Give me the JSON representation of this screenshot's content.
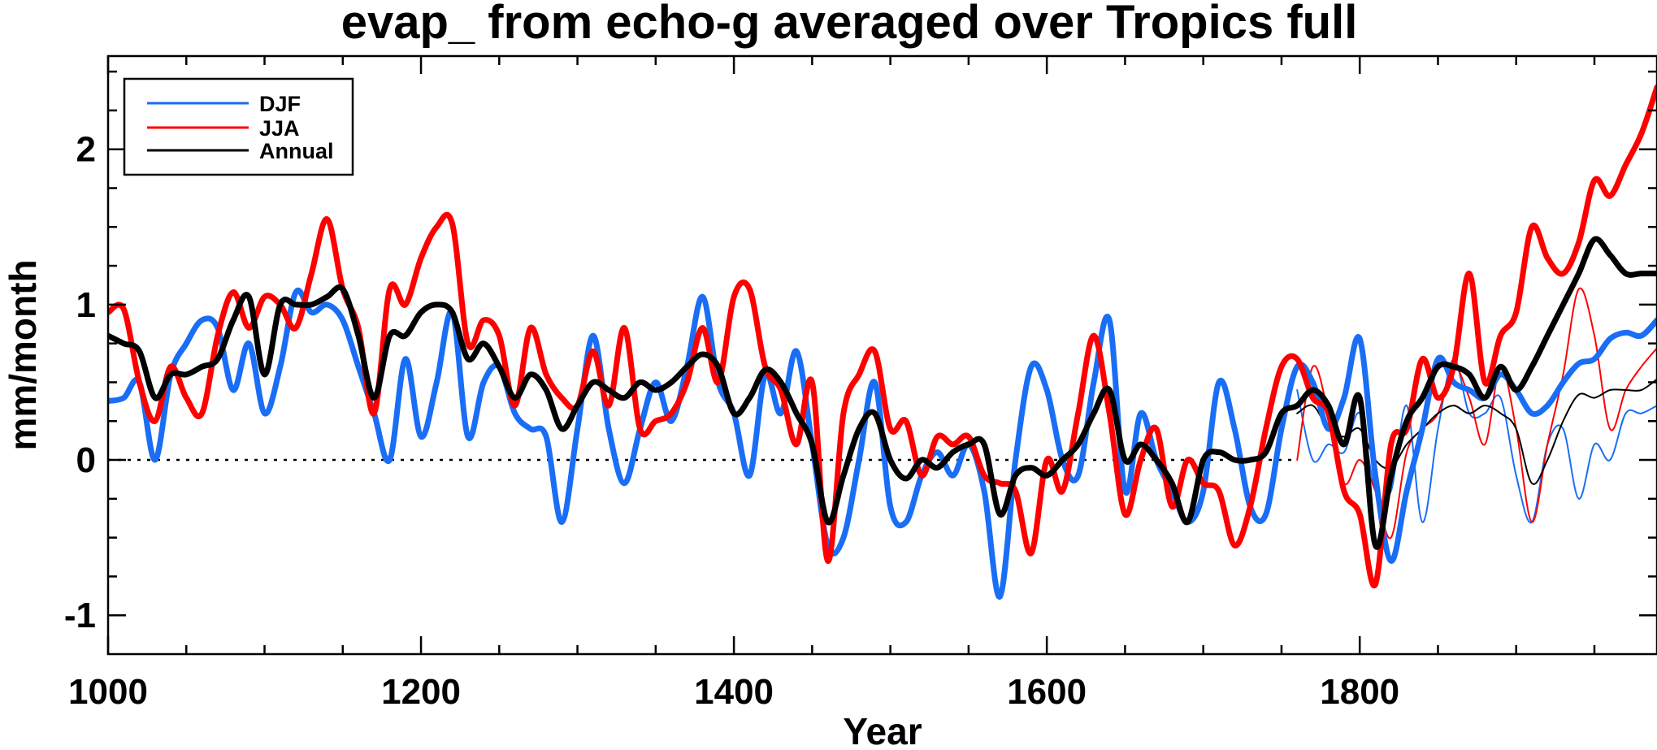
{
  "chart_data": {
    "type": "line",
    "title": "evap_ from echo-g averaged over Tropics full",
    "xlabel": "Year",
    "ylabel": "mm/month",
    "xlim": [
      1000,
      1990
    ],
    "ylim": [
      -1.25,
      2.6
    ],
    "xticks": [
      1000,
      1200,
      1400,
      1600,
      1800
    ],
    "yticks": [
      -1,
      0,
      1,
      2
    ],
    "zero_line": "dotted",
    "legend": {
      "position": "top-left",
      "entries": [
        "DJF",
        "JJA",
        "Annual"
      ]
    },
    "colors": {
      "DJF": "#1a6ef5",
      "JJA": "#ff0000",
      "Annual": "#000000"
    },
    "series": [
      {
        "name": "DJF",
        "color": "#1a6ef5",
        "x": [
          1000,
          1010,
          1020,
          1030,
          1040,
          1050,
          1060,
          1070,
          1080,
          1090,
          1100,
          1110,
          1120,
          1130,
          1140,
          1150,
          1160,
          1170,
          1180,
          1190,
          1200,
          1210,
          1220,
          1230,
          1240,
          1250,
          1260,
          1270,
          1280,
          1290,
          1300,
          1310,
          1320,
          1330,
          1340,
          1350,
          1360,
          1370,
          1380,
          1390,
          1400,
          1410,
          1420,
          1430,
          1440,
          1450,
          1460,
          1470,
          1480,
          1490,
          1500,
          1510,
          1520,
          1530,
          1540,
          1550,
          1560,
          1570,
          1580,
          1590,
          1600,
          1610,
          1620,
          1630,
          1640,
          1650,
          1660,
          1670,
          1680,
          1690,
          1700,
          1710,
          1720,
          1730,
          1740,
          1750,
          1760,
          1770,
          1780,
          1790,
          1800,
          1810,
          1820,
          1830,
          1840,
          1850,
          1860,
          1870,
          1880,
          1890,
          1900,
          1910,
          1920,
          1930,
          1940,
          1950,
          1960,
          1970,
          1980,
          1990
        ],
        "values": [
          0.38,
          0.4,
          0.5,
          0.0,
          0.55,
          0.75,
          0.9,
          0.85,
          0.45,
          0.75,
          0.3,
          0.6,
          1.08,
          0.95,
          1.0,
          0.9,
          0.6,
          0.3,
          0.0,
          0.65,
          0.15,
          0.5,
          0.95,
          0.15,
          0.5,
          0.6,
          0.3,
          0.2,
          0.15,
          -0.4,
          0.2,
          0.8,
          0.2,
          -0.15,
          0.2,
          0.5,
          0.25,
          0.6,
          1.05,
          0.5,
          0.3,
          -0.1,
          0.55,
          0.3,
          0.7,
          0.1,
          -0.55,
          -0.5,
          0.0,
          0.5,
          -0.3,
          -0.4,
          -0.1,
          0.05,
          -0.1,
          0.1,
          -0.2,
          -0.88,
          0.0,
          0.6,
          0.45,
          0.0,
          -0.1,
          0.5,
          0.9,
          -0.2,
          0.3,
          0.0,
          -0.2,
          -0.4,
          -0.2,
          0.5,
          0.2,
          -0.3,
          -0.35,
          0.2,
          0.6,
          0.5,
          0.2,
          0.4,
          0.78,
          -0.1,
          -0.65,
          -0.2,
          0.2,
          0.65,
          0.5,
          0.45,
          0.4,
          0.55,
          0.45,
          0.3,
          0.35,
          0.5,
          0.62,
          0.65,
          0.78,
          0.82,
          0.8,
          0.9
        ]
      },
      {
        "name": "JJA",
        "color": "#ff0000",
        "x": [
          1000,
          1010,
          1020,
          1030,
          1040,
          1050,
          1060,
          1070,
          1080,
          1090,
          1100,
          1110,
          1120,
          1130,
          1140,
          1150,
          1160,
          1170,
          1180,
          1190,
          1200,
          1210,
          1220,
          1230,
          1240,
          1250,
          1260,
          1270,
          1280,
          1290,
          1300,
          1310,
          1320,
          1330,
          1340,
          1350,
          1360,
          1370,
          1380,
          1390,
          1400,
          1410,
          1420,
          1430,
          1440,
          1450,
          1460,
          1470,
          1480,
          1490,
          1500,
          1510,
          1520,
          1530,
          1540,
          1550,
          1560,
          1570,
          1580,
          1590,
          1600,
          1610,
          1620,
          1630,
          1640,
          1650,
          1660,
          1670,
          1680,
          1690,
          1700,
          1710,
          1720,
          1730,
          1740,
          1750,
          1760,
          1770,
          1780,
          1790,
          1800,
          1810,
          1820,
          1830,
          1840,
          1850,
          1860,
          1870,
          1880,
          1890,
          1900,
          1910,
          1920,
          1930,
          1940,
          1950,
          1960,
          1970,
          1980,
          1990
        ],
        "values": [
          0.95,
          0.97,
          0.5,
          0.25,
          0.6,
          0.4,
          0.3,
          0.8,
          1.08,
          0.85,
          1.05,
          1.0,
          0.85,
          1.2,
          1.55,
          1.1,
          0.85,
          0.3,
          1.1,
          1.0,
          1.3,
          1.5,
          1.52,
          0.75,
          0.9,
          0.8,
          0.35,
          0.85,
          0.55,
          0.4,
          0.35,
          0.7,
          0.35,
          0.85,
          0.2,
          0.25,
          0.3,
          0.5,
          0.85,
          0.5,
          1.05,
          1.1,
          0.6,
          0.45,
          0.1,
          0.5,
          -0.65,
          0.3,
          0.55,
          0.7,
          0.2,
          0.25,
          -0.1,
          0.15,
          0.1,
          0.15,
          -0.1,
          -0.15,
          -0.2,
          -0.6,
          0.0,
          -0.2,
          0.3,
          0.8,
          0.3,
          -0.35,
          0.0,
          0.2,
          -0.3,
          0.0,
          -0.15,
          -0.2,
          -0.55,
          -0.3,
          0.2,
          0.6,
          0.65,
          0.4,
          0.3,
          -0.2,
          -0.35,
          -0.8,
          0.1,
          0.2,
          0.65,
          0.4,
          0.6,
          1.2,
          0.5,
          0.8,
          0.95,
          1.5,
          1.3,
          1.2,
          1.4,
          1.8,
          1.7,
          1.9,
          2.1,
          2.4
        ]
      },
      {
        "name": "Annual",
        "color": "#000000",
        "x": [
          1000,
          1010,
          1020,
          1030,
          1040,
          1050,
          1060,
          1070,
          1080,
          1090,
          1100,
          1110,
          1120,
          1130,
          1140,
          1150,
          1160,
          1170,
          1180,
          1190,
          1200,
          1210,
          1220,
          1230,
          1240,
          1250,
          1260,
          1270,
          1280,
          1290,
          1300,
          1310,
          1320,
          1330,
          1340,
          1350,
          1360,
          1370,
          1380,
          1390,
          1400,
          1410,
          1420,
          1430,
          1440,
          1450,
          1460,
          1470,
          1480,
          1490,
          1500,
          1510,
          1520,
          1530,
          1540,
          1550,
          1560,
          1570,
          1580,
          1590,
          1600,
          1610,
          1620,
          1630,
          1640,
          1650,
          1660,
          1670,
          1680,
          1690,
          1700,
          1710,
          1720,
          1730,
          1740,
          1750,
          1760,
          1770,
          1780,
          1790,
          1800,
          1810,
          1820,
          1830,
          1840,
          1850,
          1860,
          1870,
          1880,
          1890,
          1900,
          1910,
          1920,
          1930,
          1940,
          1950,
          1960,
          1970,
          1980,
          1990
        ],
        "values": [
          0.8,
          0.75,
          0.7,
          0.4,
          0.55,
          0.55,
          0.6,
          0.65,
          0.9,
          1.05,
          0.55,
          1.0,
          1.0,
          1.0,
          1.05,
          1.1,
          0.8,
          0.4,
          0.8,
          0.8,
          0.95,
          1.0,
          0.95,
          0.65,
          0.75,
          0.6,
          0.4,
          0.55,
          0.45,
          0.2,
          0.35,
          0.5,
          0.45,
          0.4,
          0.5,
          0.45,
          0.5,
          0.6,
          0.68,
          0.6,
          0.3,
          0.4,
          0.58,
          0.5,
          0.3,
          0.1,
          -0.4,
          -0.1,
          0.2,
          0.3,
          0.0,
          -0.12,
          0.0,
          -0.05,
          0.05,
          0.1,
          0.1,
          -0.35,
          -0.1,
          -0.05,
          -0.1,
          0.0,
          0.1,
          0.3,
          0.45,
          0.0,
          0.1,
          0.0,
          -0.15,
          -0.4,
          0.0,
          0.05,
          0.0,
          0.0,
          0.05,
          0.3,
          0.35,
          0.45,
          0.35,
          0.1,
          0.4,
          -0.55,
          -0.1,
          0.25,
          0.4,
          0.6,
          0.6,
          0.55,
          0.4,
          0.6,
          0.45,
          0.6,
          0.8,
          1.0,
          1.2,
          1.42,
          1.32,
          1.2,
          1.2,
          1.2
        ]
      },
      {
        "name": "DJF (thin)",
        "color": "#1a6ef5",
        "x": [
          1760,
          1770,
          1780,
          1790,
          1800,
          1810,
          1820,
          1830,
          1840,
          1850,
          1860,
          1870,
          1880,
          1890,
          1900,
          1910,
          1920,
          1930,
          1940,
          1950,
          1960,
          1970,
          1980,
          1990
        ],
        "values": [
          0.45,
          0.0,
          0.1,
          0.05,
          0.3,
          -0.2,
          -0.2,
          0.35,
          -0.4,
          0.2,
          0.65,
          0.3,
          0.3,
          0.4,
          -0.1,
          -0.4,
          0.1,
          0.2,
          -0.25,
          0.1,
          0.0,
          0.3,
          0.3,
          0.35
        ]
      },
      {
        "name": "JJA (thin)",
        "color": "#ff0000",
        "x": [
          1760,
          1770,
          1780,
          1790,
          1800,
          1810,
          1820,
          1830,
          1840,
          1850,
          1860,
          1870,
          1880,
          1890,
          1900,
          1910,
          1920,
          1930,
          1940,
          1950,
          1960,
          1970,
          1980,
          1990
        ],
        "values": [
          0.0,
          0.6,
          0.3,
          -0.15,
          0.0,
          -0.2,
          -0.5,
          0.05,
          0.2,
          0.3,
          0.6,
          0.4,
          0.1,
          0.6,
          0.2,
          -0.4,
          0.1,
          0.55,
          1.1,
          0.8,
          0.2,
          0.45,
          0.6,
          0.72
        ]
      },
      {
        "name": "Annual (thin)",
        "color": "#000000",
        "x": [
          1760,
          1770,
          1780,
          1790,
          1800,
          1810,
          1820,
          1830,
          1840,
          1850,
          1860,
          1870,
          1880,
          1890,
          1900,
          1910,
          1920,
          1930,
          1940,
          1950,
          1960,
          1970,
          1980,
          1990
        ],
        "values": [
          0.3,
          0.35,
          0.2,
          0.15,
          0.2,
          0.0,
          -0.05,
          0.1,
          0.2,
          0.3,
          0.35,
          0.3,
          0.35,
          0.3,
          0.2,
          -0.15,
          0.0,
          0.25,
          0.42,
          0.4,
          0.45,
          0.45,
          0.45,
          0.52
        ]
      }
    ]
  }
}
